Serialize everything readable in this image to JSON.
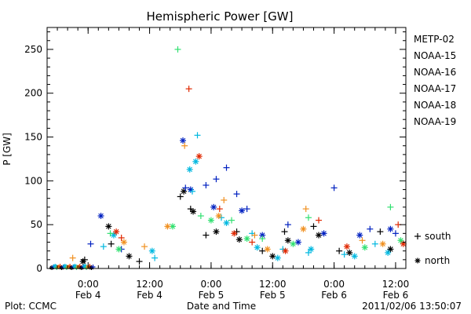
{
  "chart_data": {
    "type": "scatter",
    "title": "Hemispheric Power [GW]",
    "xlabel": "Date and Time",
    "ylabel": "P [GW]",
    "y_ticks": [
      0,
      50,
      100,
      150,
      200,
      250
    ],
    "ylim": [
      0,
      275
    ],
    "xlim": [
      "2011-02-03 16:00",
      "2011-02-06 14:00"
    ],
    "x_ticks": [
      {
        "time": "2011-02-04 00:00",
        "line1": "0:00",
        "line2": "Feb 4"
      },
      {
        "time": "2011-02-04 12:00",
        "line1": "12:00",
        "line2": "Feb 4"
      },
      {
        "time": "2011-02-05 00:00",
        "line1": "0:00",
        "line2": "Feb 5"
      },
      {
        "time": "2011-02-05 12:00",
        "line1": "12:00",
        "line2": "Feb 5"
      },
      {
        "time": "2011-02-06 00:00",
        "line1": "0:00",
        "line2": "Feb 6"
      },
      {
        "time": "2011-02-06 12:00",
        "line1": "12:00",
        "line2": "Feb 6"
      }
    ],
    "grid": false,
    "legend_position": "right",
    "marker_legend": [
      {
        "marker": "+",
        "label": "south"
      },
      {
        "marker": "*",
        "label": "north"
      }
    ],
    "series": [
      {
        "name": "METP-02",
        "color": "#000000",
        "south": [
          [
            "2011-02-03 23:20",
            10
          ],
          [
            "2011-02-04 04:30",
            28
          ],
          [
            "2011-02-04 10:00",
            8
          ],
          [
            "2011-02-04 18:00",
            82
          ],
          [
            "2011-02-04 20:00",
            68
          ],
          [
            "2011-02-04 23:00",
            38
          ],
          [
            "2011-02-05 05:00",
            42
          ],
          [
            "2011-02-05 10:00",
            20
          ],
          [
            "2011-02-05 14:20",
            42
          ],
          [
            "2011-02-05 20:00",
            48
          ],
          [
            "2011-02-06 01:00",
            20
          ],
          [
            "2011-02-06 09:00",
            42
          ]
        ],
        "north": [
          [
            "2011-02-03 23:00",
            8
          ],
          [
            "2011-02-04 04:00",
            48
          ],
          [
            "2011-02-04 08:00",
            14
          ],
          [
            "2011-02-04 18:40",
            88
          ],
          [
            "2011-02-04 20:30",
            65
          ],
          [
            "2011-02-05 01:00",
            42
          ],
          [
            "2011-02-05 05:30",
            33
          ],
          [
            "2011-02-05 12:00",
            14
          ],
          [
            "2011-02-05 15:00",
            32
          ],
          [
            "2011-02-05 21:00",
            38
          ],
          [
            "2011-02-06 03:00",
            18
          ],
          [
            "2011-02-06 11:00",
            22
          ]
        ]
      },
      {
        "name": "NOAA-15",
        "color": "#0020c0",
        "south": [
          [
            "2011-02-04 00:30",
            28
          ],
          [
            "2011-02-04 06:30",
            22
          ],
          [
            "2011-02-04 19:00",
            92
          ],
          [
            "2011-02-04 23:00",
            95
          ],
          [
            "2011-02-05 01:00",
            102
          ],
          [
            "2011-02-05 03:00",
            115
          ],
          [
            "2011-02-05 05:00",
            85
          ],
          [
            "2011-02-05 07:00",
            68
          ],
          [
            "2011-02-05 15:00",
            50
          ],
          [
            "2011-02-06 00:00",
            92
          ],
          [
            "2011-02-06 07:00",
            45
          ],
          [
            "2011-02-06 12:00",
            40
          ]
        ],
        "north": [
          [
            "2011-02-04 02:30",
            60
          ],
          [
            "2011-02-04 18:30",
            146
          ],
          [
            "2011-02-04 20:00",
            90
          ],
          [
            "2011-02-05 00:30",
            70
          ],
          [
            "2011-02-05 06:00",
            66
          ],
          [
            "2011-02-05 10:00",
            38
          ],
          [
            "2011-02-05 17:00",
            30
          ],
          [
            "2011-02-05 22:00",
            40
          ],
          [
            "2011-02-06 05:00",
            38
          ],
          [
            "2011-02-06 11:00",
            45
          ]
        ]
      },
      {
        "name": "NOAA-16",
        "color": "#00b8e0",
        "south": [
          [
            "2011-02-04 03:00",
            25
          ],
          [
            "2011-02-04 13:00",
            12
          ],
          [
            "2011-02-04 20:20",
            88
          ],
          [
            "2011-02-04 21:20",
            152
          ],
          [
            "2011-02-05 02:00",
            58
          ],
          [
            "2011-02-05 08:00",
            40
          ],
          [
            "2011-02-05 14:00",
            22
          ],
          [
            "2011-02-05 19:00",
            18
          ],
          [
            "2011-02-06 02:00",
            16
          ],
          [
            "2011-02-06 08:00",
            28
          ]
        ],
        "north": [
          [
            "2011-02-04 05:00",
            38
          ],
          [
            "2011-02-04 12:30",
            20
          ],
          [
            "2011-02-04 19:50",
            113
          ],
          [
            "2011-02-04 21:00",
            122
          ],
          [
            "2011-02-05 03:00",
            52
          ],
          [
            "2011-02-05 09:00",
            24
          ],
          [
            "2011-02-05 13:00",
            12
          ],
          [
            "2011-02-05 19:30",
            22
          ],
          [
            "2011-02-06 04:00",
            14
          ],
          [
            "2011-02-06 10:30",
            18
          ]
        ]
      },
      {
        "name": "NOAA-17",
        "color": "#30e070",
        "south": [
          [
            "2011-02-04 04:20",
            40
          ],
          [
            "2011-02-04 17:30",
            250
          ],
          [
            "2011-02-04 22:00",
            60
          ],
          [
            "2011-02-05 04:00",
            55
          ],
          [
            "2011-02-05 10:00",
            34
          ],
          [
            "2011-02-05 19:00",
            58
          ],
          [
            "2011-02-06 11:00",
            70
          ]
        ],
        "north": [
          [
            "2011-02-04 06:00",
            22
          ],
          [
            "2011-02-04 16:30",
            48
          ],
          [
            "2011-02-05 00:00",
            55
          ],
          [
            "2011-02-05 07:00",
            34
          ],
          [
            "2011-02-05 16:00",
            28
          ],
          [
            "2011-02-06 06:00",
            24
          ],
          [
            "2011-02-06 13:00",
            32
          ]
        ]
      },
      {
        "name": "NOAA-18",
        "color": "#f09020",
        "south": [
          [
            "2011-02-03 21:00",
            12
          ],
          [
            "2011-02-04 11:00",
            25
          ],
          [
            "2011-02-04 18:50",
            140
          ],
          [
            "2011-02-05 02:30",
            78
          ],
          [
            "2011-02-05 08:30",
            38
          ],
          [
            "2011-02-05 18:30",
            68
          ],
          [
            "2011-02-06 05:30",
            32
          ]
        ],
        "north": [
          [
            "2011-02-04 07:00",
            30
          ],
          [
            "2011-02-04 15:30",
            48
          ],
          [
            "2011-02-05 01:30",
            60
          ],
          [
            "2011-02-05 11:00",
            22
          ],
          [
            "2011-02-05 18:00",
            45
          ],
          [
            "2011-02-06 09:30",
            28
          ]
        ]
      },
      {
        "name": "NOAA-19",
        "color": "#e02800",
        "south": [
          [
            "2011-02-04 06:30",
            35
          ],
          [
            "2011-02-04 19:40",
            205
          ],
          [
            "2011-02-05 01:40",
            68
          ],
          [
            "2011-02-05 08:00",
            30
          ],
          [
            "2011-02-05 21:00",
            55
          ],
          [
            "2011-02-06 12:30",
            50
          ]
        ],
        "north": [
          [
            "2011-02-04 05:30",
            42
          ],
          [
            "2011-02-04 21:40",
            128
          ],
          [
            "2011-02-05 04:30",
            40
          ],
          [
            "2011-02-05 14:30",
            20
          ],
          [
            "2011-02-06 02:30",
            25
          ],
          [
            "2011-02-06 13:30",
            28
          ]
        ]
      }
    ]
  },
  "footer": {
    "plot_credit": "Plot: CCMC",
    "timestamp": "2011/02/06 13:50:07"
  }
}
